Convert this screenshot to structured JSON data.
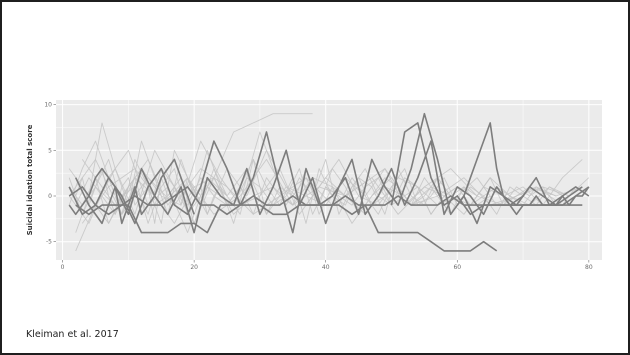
{
  "citation": "Kleiman et al. 2017",
  "colors": {
    "panel_bg": "#ebebeb",
    "grid": "#ffffff",
    "light_series": "#c4c4c4",
    "highlight_series": "#7d7d7d"
  },
  "chart_data": {
    "type": "line",
    "title": "",
    "xlabel": "",
    "ylabel": "Suicidal ideation total score",
    "xlim": [
      -1,
      82
    ],
    "ylim": [
      -7,
      10.5
    ],
    "xticks": [
      0,
      20,
      40,
      60,
      80
    ],
    "yticks": [
      -5,
      0,
      5,
      10
    ],
    "grid": true,
    "legend": "none",
    "series": [
      {
        "emphasis": "light",
        "x": [
          1,
          3,
          5,
          7,
          9,
          11,
          13,
          15,
          17,
          19,
          21,
          23,
          25,
          27,
          29,
          31,
          33,
          35,
          37,
          39,
          41,
          43,
          45,
          47,
          49,
          51,
          53,
          55,
          57,
          59,
          61,
          63,
          65
        ],
        "y": [
          -1,
          3,
          6,
          2,
          -2,
          4,
          1,
          -3,
          5,
          2,
          -1,
          3,
          0,
          -2,
          4,
          1,
          -1,
          2,
          -3,
          3,
          0,
          -1,
          2,
          1,
          -2,
          3,
          0,
          -1,
          2,
          0,
          1,
          -1,
          0
        ]
      },
      {
        "emphasis": "light",
        "x": [
          1,
          3,
          5,
          7,
          9,
          11,
          13,
          15,
          17,
          19,
          21,
          23,
          25,
          27,
          29,
          31,
          33,
          35,
          37,
          39,
          41,
          43,
          45,
          47,
          49,
          51,
          53,
          55,
          57,
          59,
          61,
          63,
          65,
          67,
          69,
          71,
          73,
          75,
          77,
          79
        ],
        "y": [
          2,
          -2,
          1,
          4,
          -1,
          2,
          -3,
          1,
          3,
          -2,
          0,
          2,
          -1,
          1,
          4,
          -2,
          1,
          0,
          2,
          -1,
          3,
          1,
          -2,
          0,
          2,
          1,
          -1,
          2,
          0,
          -2,
          1,
          0,
          2,
          -1,
          1,
          0,
          1,
          -1,
          0,
          1
        ]
      },
      {
        "emphasis": "light",
        "x": [
          2,
          4,
          6,
          8,
          10,
          12,
          14,
          16,
          18,
          20,
          22,
          24,
          26,
          28,
          30,
          32,
          34,
          36,
          38,
          40,
          42,
          44,
          46,
          48,
          50,
          52,
          54,
          56,
          58,
          60
        ],
        "y": [
          -4,
          0,
          8,
          3,
          -1,
          6,
          2,
          -2,
          4,
          0,
          5,
          1,
          -3,
          2,
          7,
          3,
          -1,
          2,
          0,
          4,
          -2,
          1,
          3,
          0,
          -1,
          2,
          1,
          -2,
          0,
          1
        ]
      },
      {
        "emphasis": "light",
        "x": [
          1,
          4,
          7,
          10,
          13,
          16,
          19,
          22,
          25,
          28,
          31,
          34,
          37,
          40,
          43,
          46,
          49,
          52,
          55,
          58,
          61,
          64,
          67,
          70,
          73,
          76,
          79
        ],
        "y": [
          0,
          -3,
          2,
          5,
          -1,
          1,
          -4,
          2,
          0,
          3,
          -2,
          1,
          0,
          -1,
          2,
          0,
          3,
          -1,
          1,
          0,
          -2,
          1,
          0,
          1,
          -1,
          2,
          4
        ]
      },
      {
        "emphasis": "light",
        "x": [
          2,
          5,
          8,
          11,
          14,
          17,
          20,
          23,
          26,
          29,
          32,
          35,
          38
        ],
        "y": [
          -6,
          -1,
          3,
          -2,
          5,
          1,
          -3,
          2,
          7,
          8,
          9,
          9,
          9
        ]
      },
      {
        "emphasis": "light",
        "x": [
          3,
          6,
          9,
          12,
          15,
          18,
          21,
          24,
          27,
          30,
          33,
          36,
          39,
          42,
          45,
          48,
          51,
          54,
          57,
          60,
          63,
          66,
          69,
          72,
          75
        ],
        "y": [
          4,
          1,
          -2,
          3,
          0,
          -1,
          6,
          2,
          -1,
          0,
          3,
          -2,
          1,
          4,
          0,
          -1,
          2,
          1,
          -1,
          0,
          2,
          -1,
          0,
          1,
          0
        ]
      },
      {
        "emphasis": "light",
        "x": [
          1,
          3,
          5,
          7,
          9,
          11,
          13,
          15,
          17,
          19,
          21,
          23,
          25,
          27,
          29,
          31,
          33,
          35,
          37,
          39,
          41,
          43,
          45,
          47,
          49,
          51,
          53,
          55,
          57,
          59
        ],
        "y": [
          1,
          -1,
          2,
          -3,
          0,
          1,
          -2,
          3,
          1,
          -1,
          2,
          0,
          -1,
          1,
          -2,
          2,
          0,
          -1,
          3,
          -2,
          1,
          0,
          2,
          -1,
          0,
          1,
          -1,
          0,
          2,
          0
        ]
      },
      {
        "emphasis": "light",
        "x": [
          2,
          5,
          8,
          11,
          14,
          17,
          20,
          23,
          26,
          29,
          32,
          35,
          38,
          41,
          44,
          47,
          50,
          53,
          56,
          59,
          62,
          65,
          68,
          71,
          74,
          77,
          80
        ],
        "y": [
          -2,
          1,
          -1,
          2,
          0,
          -3,
          1,
          2,
          -2,
          0,
          1,
          -1,
          2,
          1,
          -3,
          0,
          2,
          -1,
          1,
          0,
          -1,
          2,
          0,
          -1,
          1,
          0,
          2
        ]
      },
      {
        "emphasis": "light",
        "x": [
          1,
          4,
          7,
          10,
          13,
          16,
          19,
          22,
          25,
          28,
          31,
          34,
          37,
          40,
          43,
          46,
          49,
          52
        ],
        "y": [
          3,
          0,
          -3,
          1,
          4,
          -1,
          2,
          -2,
          3,
          0,
          5,
          1,
          -1,
          2,
          0,
          -2,
          1,
          0
        ]
      },
      {
        "emphasis": "light",
        "x": [
          2,
          4,
          6,
          8,
          10,
          12,
          14,
          16,
          18,
          20,
          22,
          24,
          26,
          28,
          30,
          32,
          34,
          36,
          38,
          40,
          42,
          44,
          46,
          48,
          50,
          52,
          54,
          56,
          58,
          60,
          62,
          64,
          66,
          68,
          70,
          72,
          74,
          76,
          78,
          80
        ],
        "y": [
          -1,
          2,
          0,
          -2,
          1,
          3,
          -1,
          0,
          2,
          -3,
          1,
          0,
          -1,
          2,
          1,
          -1,
          0,
          3,
          -2,
          1,
          0,
          -1,
          1,
          2,
          -1,
          0,
          1,
          -2,
          0,
          1,
          -1,
          0,
          1,
          0,
          -1,
          1,
          0,
          -1,
          1,
          0
        ]
      },
      {
        "emphasis": "light",
        "x": [
          1,
          5,
          9,
          13,
          17,
          21,
          25,
          29,
          33,
          37,
          41,
          45,
          49,
          53,
          57,
          61,
          65,
          69,
          73,
          77
        ],
        "y": [
          0,
          4,
          -2,
          2,
          -1,
          3,
          1,
          -2,
          0,
          2,
          -1,
          1,
          3,
          -1,
          0,
          2,
          -1,
          0,
          1,
          0
        ]
      },
      {
        "emphasis": "light",
        "x": [
          3,
          7,
          11,
          15,
          19,
          23,
          27,
          31,
          35,
          39,
          43,
          47,
          51,
          55,
          59,
          63,
          67,
          71,
          75,
          79
        ],
        "y": [
          -3,
          1,
          3,
          -1,
          2,
          -2,
          0,
          4,
          -1,
          1,
          0,
          2,
          -2,
          1,
          3,
          0,
          -1,
          1,
          0,
          1
        ]
      },
      {
        "emphasis": "light",
        "x": [
          1,
          2,
          3,
          4,
          5,
          6,
          7,
          8,
          9,
          10,
          11,
          12,
          13,
          14,
          15,
          16,
          17,
          18,
          19,
          20,
          21,
          22,
          23,
          24,
          25
        ],
        "y": [
          1,
          0,
          2,
          -1,
          1,
          3,
          0,
          -2,
          1,
          2,
          -1,
          0,
          1,
          -3,
          2,
          0,
          1,
          -1,
          2,
          0,
          1,
          -2,
          0,
          1,
          0
        ]
      },
      {
        "emphasis": "light",
        "x": [
          40,
          42,
          44,
          46,
          48,
          50,
          52,
          54,
          56,
          58,
          60,
          62,
          64,
          66,
          68,
          70,
          72,
          74,
          76,
          78,
          80
        ],
        "y": [
          1,
          -1,
          2,
          0,
          -2,
          1,
          3,
          -1,
          0,
          2,
          -1,
          1,
          0,
          -2,
          1,
          0,
          -1,
          1,
          0,
          1,
          0
        ]
      },
      {
        "emphasis": "highlight",
        "x": [
          1,
          2,
          3,
          4,
          5,
          6,
          7,
          8,
          9,
          10,
          11,
          12,
          13,
          14,
          15,
          16,
          17,
          18,
          19,
          20
        ],
        "y": [
          -1,
          -2,
          -1,
          0,
          2,
          3,
          2,
          1,
          -3,
          -1,
          1,
          -2,
          -1,
          0,
          2,
          3,
          4,
          2,
          0,
          -2
        ]
      },
      {
        "emphasis": "highlight",
        "x": [
          1,
          3,
          5,
          7,
          9,
          11,
          13,
          15,
          17,
          19,
          21,
          23,
          25,
          27,
          29,
          31,
          33,
          35,
          37,
          39,
          41,
          43,
          45,
          47,
          49,
          51,
          53,
          55,
          57,
          59,
          61,
          63,
          65,
          67,
          69,
          71,
          73,
          75,
          77,
          79
        ],
        "y": [
          1,
          -2,
          -1,
          2,
          0,
          -3,
          1,
          3,
          -1,
          -2,
          1,
          6,
          3,
          -1,
          2,
          7,
          1,
          -4,
          3,
          -1,
          0,
          2,
          -2,
          4,
          1,
          -1,
          3,
          9,
          4,
          -2,
          0,
          -3,
          1,
          0,
          -1,
          1,
          0,
          -1,
          0,
          1
        ]
      },
      {
        "emphasis": "highlight",
        "x": [
          2,
          4,
          6,
          8,
          10,
          12,
          14,
          16,
          18,
          20,
          22,
          24,
          26,
          28,
          30,
          32,
          34,
          36,
          38,
          40,
          42,
          44,
          46,
          48,
          50,
          52,
          54,
          56,
          58,
          60,
          62,
          64,
          66
        ],
        "y": [
          -1,
          -2,
          -1,
          -1,
          -1,
          -4,
          -4,
          -4,
          -3,
          -3,
          -4,
          -1,
          -1,
          -1,
          -1,
          -2,
          -2,
          -1,
          -1,
          -1,
          -1,
          -2,
          -1,
          -4,
          -4,
          -4,
          -4,
          -5,
          -6,
          -6,
          -6,
          -5,
          -6
        ]
      },
      {
        "emphasis": "highlight",
        "x": [
          1,
          3,
          5,
          7,
          9,
          11,
          13,
          15,
          17,
          19,
          21,
          23,
          25,
          27,
          29,
          31,
          33,
          35,
          37,
          39,
          41,
          43,
          45,
          47,
          49,
          51,
          53,
          55,
          57,
          59,
          61,
          63,
          65,
          67,
          69,
          71,
          73,
          75,
          77,
          79
        ],
        "y": [
          0,
          1,
          -1,
          -2,
          -1,
          0,
          -1,
          -1,
          0,
          1,
          -1,
          -1,
          -2,
          -1,
          0,
          -1,
          -1,
          0,
          -1,
          -1,
          -1,
          0,
          -1,
          -1,
          -1,
          0,
          -1,
          -1,
          -1,
          0,
          -1,
          -1,
          -1,
          -1,
          -1,
          -1,
          -1,
          -1,
          -1,
          -1
        ]
      },
      {
        "emphasis": "highlight",
        "x": [
          2,
          4,
          6,
          8,
          10,
          12,
          14,
          16,
          18,
          20,
          22,
          24,
          26,
          28,
          30,
          32,
          34,
          36,
          38,
          40,
          42,
          44,
          46,
          48,
          50,
          52,
          54,
          56,
          58,
          60,
          62,
          64,
          66,
          68,
          70,
          72,
          74,
          76,
          78,
          80
        ],
        "y": [
          2,
          -1,
          -3,
          1,
          -2,
          3,
          0,
          -2,
          1,
          -4,
          2,
          0,
          -1,
          3,
          -2,
          1,
          5,
          -1,
          2,
          -3,
          1,
          4,
          -2,
          0,
          3,
          -1,
          2,
          6,
          -2,
          1,
          0,
          -2,
          1,
          -1,
          0,
          2,
          -1,
          0,
          1,
          0
        ]
      },
      {
        "emphasis": "highlight",
        "x": [
          50,
          52,
          54,
          56,
          58,
          60,
          62,
          64,
          66,
          68,
          70,
          72,
          74,
          76,
          78,
          80
        ],
        "y": [
          -1,
          7,
          8,
          2,
          -1,
          0,
          -2,
          -1,
          -1,
          -1,
          -1,
          -1,
          -1,
          -1,
          0,
          1
        ]
      },
      {
        "emphasis": "highlight",
        "x": [
          60,
          61,
          62,
          63,
          64,
          65,
          66,
          67,
          68,
          69,
          70,
          71,
          72,
          73,
          74,
          75,
          76,
          77,
          78,
          79,
          80
        ],
        "y": [
          -1,
          0,
          2,
          4,
          6,
          8,
          3,
          0,
          -1,
          -2,
          -1,
          -1,
          0,
          -1,
          -1,
          -1,
          0,
          -1,
          0,
          0,
          1
        ]
      }
    ]
  }
}
